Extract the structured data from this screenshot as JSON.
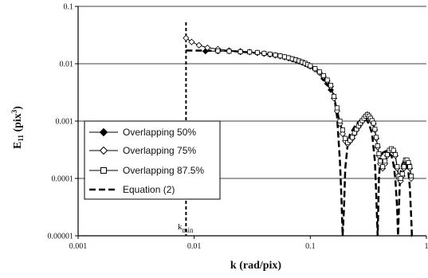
{
  "chart_data": {
    "type": "line",
    "title": "",
    "xlabel": "k (rad/pix)",
    "ylabel_main": "E",
    "ylabel_sub": "11",
    "ylabel_unit": " (pix",
    "ylabel_sup": "3",
    "ylabel_end": ")",
    "x_scale": "log",
    "y_scale": "log",
    "xlim": [
      0.001,
      1
    ],
    "ylim": [
      1e-05,
      0.1
    ],
    "x_ticks": [
      0.001,
      0.01,
      0.1,
      1
    ],
    "x_tick_labels": [
      "0.001",
      "0.01",
      "0.1",
      "1"
    ],
    "y_ticks": [
      1e-05,
      0.0001,
      0.001,
      0.01,
      0.1
    ],
    "y_tick_labels": [
      "0.00001",
      "0.0001",
      "0.001",
      "0.01",
      "0.1"
    ],
    "grid": "horizontal major lines",
    "legend_position": "left",
    "annotation": {
      "text_main": "k",
      "text_sub": "min",
      "x": 0.0085
    },
    "series": [
      {
        "name": "Overlapping 50%",
        "marker": "filled-diamond",
        "x": [
          0.0125,
          0.016,
          0.02,
          0.025,
          0.03,
          0.035,
          0.04,
          0.045,
          0.05,
          0.055,
          0.06,
          0.065,
          0.07,
          0.075,
          0.08,
          0.085,
          0.09,
          0.095,
          0.1,
          0.11,
          0.12,
          0.13,
          0.14,
          0.15
        ],
        "y": [
          0.0165,
          0.0165,
          0.0165,
          0.016,
          0.016,
          0.0155,
          0.015,
          0.0145,
          0.014,
          0.0135,
          0.013,
          0.0125,
          0.012,
          0.0115,
          0.011,
          0.0105,
          0.01,
          0.0095,
          0.009,
          0.008,
          0.007,
          0.0055,
          0.0045,
          0.0035
        ]
      },
      {
        "name": "Overlapping 75%",
        "marker": "open-diamond",
        "x": [
          0.0085,
          0.0095,
          0.011,
          0.013,
          0.016,
          0.02,
          0.025,
          0.03,
          0.035,
          0.04,
          0.045,
          0.05,
          0.055,
          0.06,
          0.065,
          0.07,
          0.075,
          0.08,
          0.085,
          0.09,
          0.095,
          0.1,
          0.11,
          0.12,
          0.13,
          0.14,
          0.15,
          0.16,
          0.17,
          0.18,
          0.19,
          0.2,
          0.21,
          0.22,
          0.23,
          0.24,
          0.25,
          0.26,
          0.27,
          0.28,
          0.29,
          0.3,
          0.31,
          0.32,
          0.33,
          0.34,
          0.35,
          0.36,
          0.37,
          0.38,
          0.39,
          0.4,
          0.42,
          0.44,
          0.46,
          0.48,
          0.5,
          0.52,
          0.54,
          0.56,
          0.58,
          0.6,
          0.62,
          0.64,
          0.66,
          0.68,
          0.7,
          0.72,
          0.74
        ],
        "y": [
          0.028,
          0.024,
          0.021,
          0.019,
          0.018,
          0.017,
          0.0165,
          0.016,
          0.0155,
          0.015,
          0.0145,
          0.014,
          0.0135,
          0.013,
          0.0125,
          0.012,
          0.0115,
          0.011,
          0.0105,
          0.01,
          0.0095,
          0.009,
          0.008,
          0.007,
          0.006,
          0.005,
          0.004,
          0.0025,
          0.0015,
          0.0009,
          0.0006,
          0.00045,
          0.0004,
          0.00045,
          0.0005,
          0.0006,
          0.0007,
          0.0008,
          0.0009,
          0.001,
          0.0011,
          0.0012,
          0.0013,
          0.0012,
          0.0011,
          0.001,
          0.0009,
          0.0007,
          0.0005,
          0.00035,
          0.00025,
          0.00018,
          0.00015,
          0.00018,
          0.00025,
          0.0003,
          0.00032,
          0.0003,
          0.00025,
          0.00015,
          0.0001,
          9e-05,
          0.00011,
          0.00015,
          0.0002,
          0.0002,
          0.00018,
          0.00015,
          0.0001
        ]
      },
      {
        "name": "Overlapping 87.5%",
        "marker": "open-square",
        "x": [
          0.016,
          0.02,
          0.025,
          0.03,
          0.035,
          0.04,
          0.045,
          0.05,
          0.055,
          0.06,
          0.065,
          0.07,
          0.075,
          0.08,
          0.085,
          0.09,
          0.095,
          0.1,
          0.11,
          0.12,
          0.13,
          0.14,
          0.15,
          0.16,
          0.17,
          0.18,
          0.19,
          0.2,
          0.21,
          0.22,
          0.23,
          0.24,
          0.25,
          0.26,
          0.27,
          0.28,
          0.29,
          0.3,
          0.31,
          0.32,
          0.33,
          0.34,
          0.35,
          0.36,
          0.37,
          0.38,
          0.39,
          0.4,
          0.42,
          0.44,
          0.46,
          0.48,
          0.5,
          0.52,
          0.54,
          0.56,
          0.58,
          0.6,
          0.62,
          0.64,
          0.66,
          0.68,
          0.7,
          0.72,
          0.74
        ],
        "y": [
          0.0168,
          0.0165,
          0.0162,
          0.016,
          0.0157,
          0.0152,
          0.0147,
          0.0142,
          0.0137,
          0.0132,
          0.0127,
          0.0122,
          0.0117,
          0.0112,
          0.0107,
          0.0102,
          0.0097,
          0.0092,
          0.0082,
          0.0072,
          0.0062,
          0.0052,
          0.0042,
          0.0027,
          0.0017,
          0.001,
          0.0007,
          0.0005,
          0.00042,
          0.00046,
          0.00052,
          0.00062,
          0.00072,
          0.00082,
          0.00092,
          0.00102,
          0.00112,
          0.00122,
          0.0013,
          0.00122,
          0.00112,
          0.00102,
          0.00092,
          0.00072,
          0.00052,
          0.00037,
          0.00027,
          0.0002,
          0.00016,
          0.0002,
          0.00026,
          0.00031,
          0.00033,
          0.00031,
          0.00026,
          0.00016,
          0.00011,
          0.0001,
          0.00012,
          0.00016,
          0.00021,
          0.00021,
          0.00019,
          0.00016,
          0.00011
        ]
      },
      {
        "name": "Equation (2)",
        "marker": "dashed-line",
        "x": [
          0.0085,
          0.02,
          0.04,
          0.06,
          0.08,
          0.1,
          0.12,
          0.14,
          0.16,
          0.17,
          0.18,
          0.185,
          0.19,
          0.195,
          0.2,
          0.21,
          0.22,
          0.25,
          0.28,
          0.3,
          0.32,
          0.34,
          0.36,
          0.37,
          0.38,
          0.385,
          0.39,
          0.4,
          0.42,
          0.45,
          0.5,
          0.52,
          0.54,
          0.56,
          0.57,
          0.58,
          0.59,
          0.6,
          0.62,
          0.65,
          0.68,
          0.7,
          0.72,
          0.74,
          0.75,
          0.76
        ],
        "y": [
          0.017,
          0.0168,
          0.015,
          0.013,
          0.011,
          0.009,
          0.007,
          0.005,
          0.0028,
          0.0012,
          0.0002,
          5e-05,
          1e-05,
          3e-05,
          0.00015,
          0.0004,
          0.0006,
          0.0009,
          0.0011,
          0.0011,
          0.0009,
          0.0006,
          0.0002,
          5e-05,
          1e-05,
          3e-05,
          0.0001,
          0.0002,
          0.00028,
          0.0003,
          0.00025,
          0.00018,
          0.0001,
          3e-05,
          1e-05,
          3e-05,
          8e-05,
          0.00013,
          0.00018,
          0.0002,
          0.00018,
          0.00013,
          7e-05,
          2e-05,
          1e-05,
          1e-05
        ]
      }
    ],
    "legend": [
      {
        "label": "Overlapping 50%"
      },
      {
        "label": "Overlapping 75%"
      },
      {
        "label": "Overlapping 87.5%"
      },
      {
        "label": "Equation (2)"
      }
    ]
  }
}
